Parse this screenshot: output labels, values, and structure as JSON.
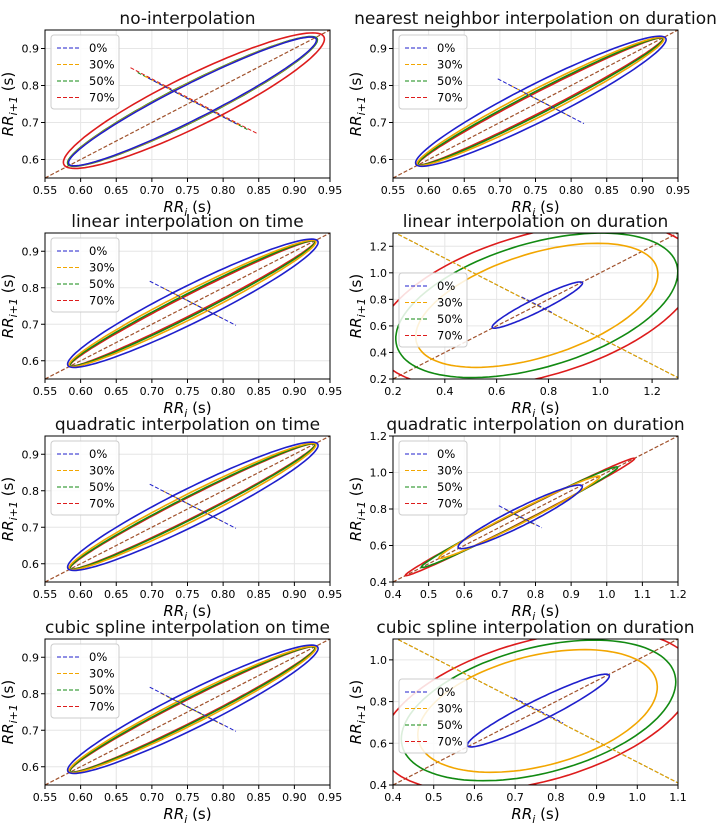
{
  "figure": {
    "legend_labels": [
      "0%",
      "30%",
      "50%",
      "70%"
    ],
    "colors": {
      "0%": "#1f1fcc",
      "30%": "#f2a600",
      "50%": "#128a12",
      "70%": "#dd1c1c",
      "identity": "#a0522d",
      "grid": "#e6e6e6"
    }
  },
  "chart_data": [
    {
      "type": "scatter",
      "title": "no-interpolation",
      "xlabel": "RR_i (s)",
      "ylabel": "RR_{i+1} (s)",
      "xlim": [
        0.55,
        0.95
      ],
      "ylim": [
        0.55,
        0.95
      ],
      "xticks": [
        "0.55",
        "0.60",
        "0.65",
        "0.70",
        "0.75",
        "0.80",
        "0.85",
        "0.90",
        "0.95"
      ],
      "yticks": [
        "0.6",
        "0.7",
        "0.8",
        "0.9"
      ],
      "legend": "top-left",
      "series": [
        {
          "name": "0%",
          "mean": 0.757,
          "ellipse_end_low": 0.585,
          "ellipse_end_high": 0.929,
          "ellipse_half_width": 0.038,
          "sd1_line": [
            [
              0.695,
              0.82
            ],
            [
              0.819,
              0.696
            ]
          ]
        },
        {
          "name": "30%",
          "mean": 0.757,
          "ellipse_end_low": 0.585,
          "ellipse_end_high": 0.929,
          "ellipse_half_width": 0.039,
          "sd1_line": [
            [
              0.69,
              0.825
            ],
            [
              0.824,
              0.691
            ]
          ]
        },
        {
          "name": "50%",
          "mean": 0.757,
          "ellipse_end_low": 0.584,
          "ellipse_end_high": 0.93,
          "ellipse_half_width": 0.04,
          "sd1_line": [
            [
              0.68,
              0.835
            ],
            [
              0.834,
              0.681
            ]
          ]
        },
        {
          "name": "70%",
          "mean": 0.759,
          "ellipse_end_low": 0.58,
          "ellipse_end_high": 0.938,
          "ellipse_half_width": 0.055,
          "sd1_line": [
            [
              0.67,
              0.848
            ],
            [
              0.848,
              0.67
            ]
          ]
        }
      ]
    },
    {
      "type": "scatter",
      "title": "nearest neighbor interpolation on duration",
      "xlabel": "RR_i (s)",
      "ylabel": "RR_{i+1} (s)",
      "xlim": [
        0.55,
        0.95
      ],
      "ylim": [
        0.55,
        0.95
      ],
      "xticks": [
        "0.55",
        "0.60",
        "0.65",
        "0.70",
        "0.75",
        "0.80",
        "0.85",
        "0.90",
        "0.95"
      ],
      "yticks": [
        "0.6",
        "0.7",
        "0.8",
        "0.9"
      ],
      "legend": "top-left",
      "series": [
        {
          "name": "0%",
          "mean": 0.757,
          "ellipse_end_low": 0.584,
          "ellipse_end_high": 0.931,
          "ellipse_half_width": 0.04,
          "sd1_line": [
            [
              0.697,
              0.818
            ],
            [
              0.818,
              0.697
            ]
          ]
        },
        {
          "name": "30%",
          "mean": 0.757,
          "ellipse_end_low": 0.585,
          "ellipse_end_high": 0.929,
          "ellipse_half_width": 0.029,
          "sd1_line": [
            [
              0.715,
              0.8
            ],
            [
              0.8,
              0.715
            ]
          ]
        },
        {
          "name": "50%",
          "mean": 0.757,
          "ellipse_end_low": 0.586,
          "ellipse_end_high": 0.928,
          "ellipse_half_width": 0.024,
          "sd1_line": [
            [
              0.725,
              0.79
            ],
            [
              0.79,
              0.725
            ]
          ]
        },
        {
          "name": "70%",
          "mean": 0.757,
          "ellipse_end_low": 0.586,
          "ellipse_end_high": 0.928,
          "ellipse_half_width": 0.021,
          "sd1_line": [
            [
              0.73,
              0.785
            ],
            [
              0.785,
              0.73
            ]
          ]
        }
      ]
    },
    {
      "type": "scatter",
      "title": "linear interpolation on time",
      "xlabel": "RR_i (s)",
      "ylabel": "RR_{i+1} (s)",
      "xlim": [
        0.55,
        0.95
      ],
      "ylim": [
        0.55,
        0.95
      ],
      "xticks": [
        "0.55",
        "0.60",
        "0.65",
        "0.70",
        "0.75",
        "0.80",
        "0.85",
        "0.90",
        "0.95"
      ],
      "yticks": [
        "0.6",
        "0.7",
        "0.8",
        "0.9"
      ],
      "legend": "top-left",
      "series": [
        {
          "name": "0%",
          "mean": 0.757,
          "ellipse_end_low": 0.584,
          "ellipse_end_high": 0.931,
          "ellipse_half_width": 0.04,
          "sd1_line": [
            [
              0.697,
              0.818
            ],
            [
              0.818,
              0.697
            ]
          ]
        },
        {
          "name": "30%",
          "mean": 0.757,
          "ellipse_end_low": 0.585,
          "ellipse_end_high": 0.929,
          "ellipse_half_width": 0.029,
          "sd1_line": [
            [
              0.715,
              0.8
            ],
            [
              0.8,
              0.715
            ]
          ]
        },
        {
          "name": "50%",
          "mean": 0.757,
          "ellipse_end_low": 0.586,
          "ellipse_end_high": 0.928,
          "ellipse_half_width": 0.024,
          "sd1_line": [
            [
              0.725,
              0.79
            ],
            [
              0.79,
              0.725
            ]
          ]
        },
        {
          "name": "70%",
          "mean": 0.757,
          "ellipse_end_low": 0.586,
          "ellipse_end_high": 0.928,
          "ellipse_half_width": 0.021,
          "sd1_line": [
            [
              0.73,
              0.785
            ],
            [
              0.785,
              0.73
            ]
          ]
        }
      ]
    },
    {
      "type": "scatter",
      "title": "linear interpolation on duration",
      "xlabel": "RR_i (s)",
      "ylabel": "RR_{i+1} (s)",
      "xlim": [
        0.2,
        1.3
      ],
      "ylim": [
        0.2,
        1.3
      ],
      "xticks": [
        "0.2",
        "0.4",
        "0.6",
        "0.8",
        "1.0",
        "1.2"
      ],
      "yticks": [
        "0.2",
        "0.4",
        "0.6",
        "0.8",
        "1.0",
        "1.2"
      ],
      "legend": "center-left",
      "series": [
        {
          "name": "0%",
          "mean": 0.757,
          "ellipse_end_low": 0.585,
          "ellipse_end_high": 0.929,
          "ellipse_half_width": 0.04,
          "sd1_line": [
            [
              0.697,
              0.818
            ],
            [
              0.818,
              0.697
            ]
          ]
        },
        {
          "name": "30%",
          "mean": 0.755,
          "ellipse_end_low": 0.35,
          "ellipse_end_high": 1.16,
          "ellipse_half_width": 0.33,
          "sd1_line": [
            [
              0.2,
              1.31
            ],
            [
              1.31,
              0.2
            ]
          ]
        },
        {
          "name": "50%",
          "mean": 0.755,
          "ellipse_end_low": 0.29,
          "ellipse_end_high": 1.22,
          "ellipse_half_width": 0.4,
          "sd1_line": [
            [
              0.2,
              1.31
            ],
            [
              1.31,
              0.2
            ]
          ]
        },
        {
          "name": "70%",
          "mean": 0.755,
          "ellipse_end_low": 0.23,
          "ellipse_end_high": 1.28,
          "ellipse_half_width": 0.46,
          "sd1_line": [
            [
              0.2,
              1.31
            ],
            [
              1.31,
              0.2
            ]
          ]
        }
      ]
    },
    {
      "type": "scatter",
      "title": "quadratic interpolation on time",
      "xlabel": "RR_i (s)",
      "ylabel": "RR_{i+1} (s)",
      "xlim": [
        0.55,
        0.95
      ],
      "ylim": [
        0.55,
        0.95
      ],
      "xticks": [
        "0.55",
        "0.60",
        "0.65",
        "0.70",
        "0.75",
        "0.80",
        "0.85",
        "0.90",
        "0.95"
      ],
      "yticks": [
        "0.6",
        "0.7",
        "0.8",
        "0.9"
      ],
      "legend": "top-left",
      "series": [
        {
          "name": "0%",
          "mean": 0.757,
          "ellipse_end_low": 0.584,
          "ellipse_end_high": 0.931,
          "ellipse_half_width": 0.04,
          "sd1_line": [
            [
              0.697,
              0.818
            ],
            [
              0.818,
              0.697
            ]
          ]
        },
        {
          "name": "30%",
          "mean": 0.757,
          "ellipse_end_low": 0.585,
          "ellipse_end_high": 0.929,
          "ellipse_half_width": 0.029,
          "sd1_line": [
            [
              0.715,
              0.8
            ],
            [
              0.8,
              0.715
            ]
          ]
        },
        {
          "name": "50%",
          "mean": 0.757,
          "ellipse_end_low": 0.586,
          "ellipse_end_high": 0.928,
          "ellipse_half_width": 0.024,
          "sd1_line": [
            [
              0.725,
              0.79
            ],
            [
              0.79,
              0.725
            ]
          ]
        },
        {
          "name": "70%",
          "mean": 0.757,
          "ellipse_end_low": 0.586,
          "ellipse_end_high": 0.928,
          "ellipse_half_width": 0.022,
          "sd1_line": [
            [
              0.73,
              0.785
            ],
            [
              0.785,
              0.73
            ]
          ]
        }
      ]
    },
    {
      "type": "scatter",
      "title": "quadratic interpolation on duration",
      "xlabel": "RR_i (s)",
      "ylabel": "RR_{i+1} (s)",
      "xlim": [
        0.4,
        1.2
      ],
      "ylim": [
        0.4,
        1.2
      ],
      "xticks": [
        "0.4",
        "0.5",
        "0.6",
        "0.7",
        "0.8",
        "0.9",
        "1.0",
        "1.1",
        "1.2"
      ],
      "yticks": [
        "0.4",
        "0.6",
        "0.8",
        "1.0",
        "1.2"
      ],
      "legend": "top-left",
      "series": [
        {
          "name": "0%",
          "mean": 0.757,
          "ellipse_end_low": 0.585,
          "ellipse_end_high": 0.929,
          "ellipse_half_width": 0.04,
          "sd1_line": [
            [
              0.697,
              0.818
            ],
            [
              0.818,
              0.697
            ]
          ]
        },
        {
          "name": "30%",
          "mean": 0.755,
          "ellipse_end_low": 0.53,
          "ellipse_end_high": 0.98,
          "ellipse_half_width": 0.028,
          "sd1_line": [
            [
              0.715,
              0.797
            ],
            [
              0.797,
              0.715
            ]
          ]
        },
        {
          "name": "50%",
          "mean": 0.755,
          "ellipse_end_low": 0.48,
          "ellipse_end_high": 1.03,
          "ellipse_half_width": 0.026,
          "sd1_line": [
            [
              0.72,
              0.792
            ],
            [
              0.792,
              0.72
            ]
          ]
        },
        {
          "name": "70%",
          "mean": 0.755,
          "ellipse_end_low": 0.435,
          "ellipse_end_high": 1.078,
          "ellipse_half_width": 0.024,
          "sd1_line": [
            [
              0.722,
              0.79
            ],
            [
              0.79,
              0.722
            ]
          ]
        }
      ]
    },
    {
      "type": "scatter",
      "title": "cubic spline interpolation on time",
      "xlabel": "RR_i (s)",
      "ylabel": "RR_{i+1} (s)",
      "xlim": [
        0.55,
        0.95
      ],
      "ylim": [
        0.55,
        0.95
      ],
      "xticks": [
        "0.55",
        "0.60",
        "0.65",
        "0.70",
        "0.75",
        "0.80",
        "0.85",
        "0.90",
        "0.95"
      ],
      "yticks": [
        "0.6",
        "0.7",
        "0.8",
        "0.9"
      ],
      "legend": "top-left",
      "series": [
        {
          "name": "0%",
          "mean": 0.757,
          "ellipse_end_low": 0.584,
          "ellipse_end_high": 0.931,
          "ellipse_half_width": 0.04,
          "sd1_line": [
            [
              0.697,
              0.818
            ],
            [
              0.818,
              0.697
            ]
          ]
        },
        {
          "name": "30%",
          "mean": 0.757,
          "ellipse_end_low": 0.585,
          "ellipse_end_high": 0.929,
          "ellipse_half_width": 0.03,
          "sd1_line": [
            [
              0.713,
              0.801
            ],
            [
              0.801,
              0.713
            ]
          ]
        },
        {
          "name": "50%",
          "mean": 0.757,
          "ellipse_end_low": 0.586,
          "ellipse_end_high": 0.928,
          "ellipse_half_width": 0.026,
          "sd1_line": [
            [
              0.722,
              0.792
            ],
            [
              0.792,
              0.722
            ]
          ]
        },
        {
          "name": "70%",
          "mean": 0.757,
          "ellipse_end_low": 0.586,
          "ellipse_end_high": 0.928,
          "ellipse_half_width": 0.024,
          "sd1_line": [
            [
              0.727,
              0.787
            ],
            [
              0.787,
              0.727
            ]
          ]
        }
      ]
    },
    {
      "type": "scatter",
      "title": "cubic spline interpolation on duration",
      "xlabel": "RR_i (s)",
      "ylabel": "RR_{i+1} (s)",
      "xlim": [
        0.4,
        1.1
      ],
      "ylim": [
        0.4,
        1.1
      ],
      "xticks": [
        "0.4",
        "0.5",
        "0.6",
        "0.7",
        "0.8",
        "0.9",
        "1.0",
        "1.1"
      ],
      "yticks": [
        "0.4",
        "0.6",
        "0.8",
        "1.0"
      ],
      "legend": "center-left",
      "series": [
        {
          "name": "0%",
          "mean": 0.757,
          "ellipse_end_low": 0.585,
          "ellipse_end_high": 0.929,
          "ellipse_half_width": 0.04,
          "sd1_line": [
            [
              0.697,
              0.818
            ],
            [
              0.818,
              0.697
            ]
          ]
        },
        {
          "name": "30%",
          "mean": 0.756,
          "ellipse_end_low": 0.51,
          "ellipse_end_high": 1.0,
          "ellipse_half_width": 0.23,
          "sd1_line": [
            [
              0.4,
              1.11
            ],
            [
              1.11,
              0.4
            ]
          ]
        },
        {
          "name": "50%",
          "mean": 0.756,
          "ellipse_end_low": 0.475,
          "ellipse_end_high": 1.04,
          "ellipse_half_width": 0.26,
          "sd1_line": [
            [
              0.4,
              1.11
            ],
            [
              1.11,
              0.4
            ]
          ]
        },
        {
          "name": "70%",
          "mean": 0.756,
          "ellipse_end_low": 0.43,
          "ellipse_end_high": 1.08,
          "ellipse_half_width": 0.29,
          "sd1_line": [
            [
              0.4,
              1.11
            ],
            [
              1.11,
              0.4
            ]
          ]
        }
      ]
    }
  ]
}
